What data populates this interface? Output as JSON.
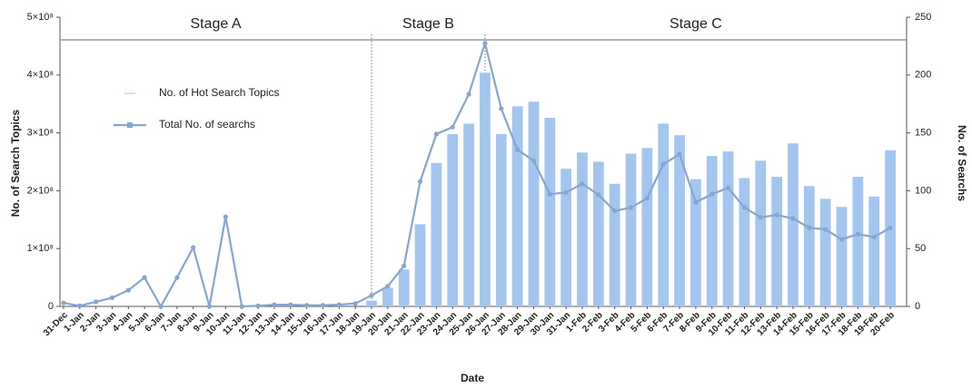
{
  "chart_data": {
    "type": "combo",
    "categories": [
      "31-Dec",
      "1-Jan",
      "2-Jan",
      "3-Jan",
      "4-Jan",
      "5-Jan",
      "6-Jan",
      "7-Jan",
      "8-Jan",
      "9-Jan",
      "10-Jan",
      "11-Jan",
      "12-Jan",
      "13-Jan",
      "14-Jan",
      "15-Jan",
      "16-Jan",
      "17-Jan",
      "18-Jan",
      "19-Jan",
      "20-Jan",
      "21-Jan",
      "22-Jan",
      "23-Jan",
      "24-Jan",
      "25-Jan",
      "26-Jan",
      "27-Jan",
      "28-Jan",
      "29-Jan",
      "30-Jan",
      "31-Jan",
      "1-Feb",
      "2-Feb",
      "3-Feb",
      "4-Feb",
      "5-Feb",
      "6-Feb",
      "7-Feb",
      "8-Feb",
      "9-Feb",
      "10-Feb",
      "11-Feb",
      "12-Feb",
      "13-Feb",
      "14-Feb",
      "15-Feb",
      "16-Feb",
      "17-Feb",
      "18-Feb",
      "19-Feb",
      "20-Feb"
    ],
    "series": [
      {
        "name": "No. of Hot Search Topics",
        "type": "bar",
        "axis": "y2",
        "color": "#a3c6f0",
        "values": [
          0,
          0,
          0,
          0,
          0,
          0,
          0,
          0,
          0,
          0,
          0,
          0,
          0,
          0,
          0,
          0,
          0,
          0,
          0,
          5,
          16,
          32,
          71,
          124,
          149,
          158,
          202,
          149,
          173,
          177,
          163,
          119,
          133,
          125,
          106,
          132,
          137,
          158,
          148,
          110,
          130,
          134,
          111,
          126,
          112,
          141,
          104,
          93,
          86,
          112,
          95,
          135
        ]
      },
      {
        "name": "Total No. of searchs",
        "type": "line",
        "color": "#86a6cf",
        "values": [
          6000000,
          1000000,
          8000000,
          15000000,
          28000000,
          50000000,
          0,
          50000000,
          102000000,
          0,
          155000000,
          0,
          1000000,
          3000000,
          3000000,
          2000000,
          2000000,
          3000000,
          5000000,
          19000000,
          35000000,
          70000000,
          216000000,
          298000000,
          310000000,
          367000000,
          455000000,
          342000000,
          271000000,
          252000000,
          194000000,
          197000000,
          212000000,
          193000000,
          165000000,
          171000000,
          187000000,
          246000000,
          263000000,
          180000000,
          194000000,
          205000000,
          171000000,
          154000000,
          158000000,
          152000000,
          136000000,
          133000000,
          116000000,
          125000000,
          120000000,
          136000000
        ]
      }
    ],
    "xlabel": "Date",
    "ylabel": "No. of Search Topics",
    "y2label": "No. of Searchs",
    "ylim": [
      0,
      500000000
    ],
    "yticks": [
      0,
      {
        "value": 100000000,
        "label": "1×10⁸"
      },
      {
        "value": 200000000,
        "label": "2×10⁸"
      },
      {
        "value": 300000000,
        "label": "3×10⁸"
      },
      {
        "value": 400000000,
        "label": "4×10⁸"
      },
      {
        "value": 500000000,
        "label": "5×10⁸"
      }
    ],
    "y2lim": [
      0,
      250
    ],
    "y2ticks": [
      0,
      50,
      100,
      150,
      200,
      250
    ],
    "legend": "upper left",
    "stages": [
      {
        "label": "Stage A",
        "start": "31-Dec",
        "end": "19-Jan"
      },
      {
        "label": "Stage B",
        "start": "19-Jan",
        "end": "26-Jan"
      },
      {
        "label": "Stage C",
        "start": "26-Jan",
        "end": "20-Feb"
      }
    ]
  }
}
